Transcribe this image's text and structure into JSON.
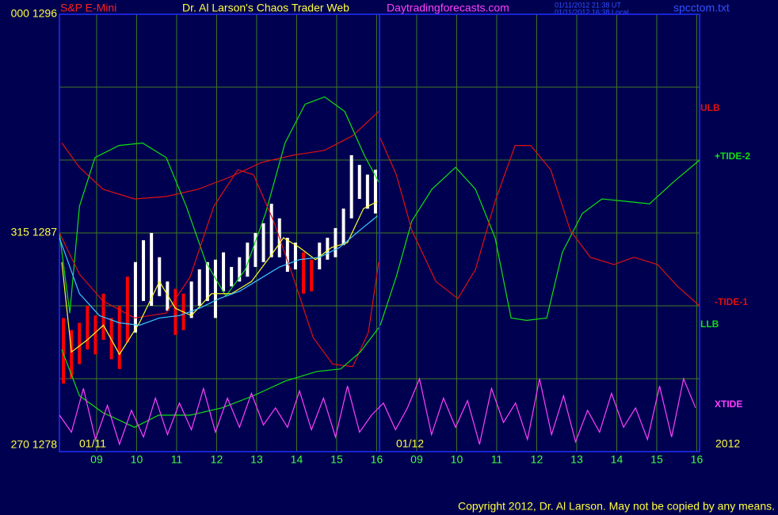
{
  "header": {
    "symbol": "S&P E-Mini",
    "title": "Dr. Al Larson's Chaos Trader Web",
    "site": "Daytradingforecasts.com",
    "time_ut": "01/11/2012 21:38 UT",
    "time_local": "01/11/2012 16:38 Local",
    "file": "spcctom.txt"
  },
  "footer": "Copyright 2012, Dr. Al Larson. May not be copied by any means.",
  "chart_data": {
    "type": "line",
    "xlim": [
      0,
      16
    ],
    "ylim": [
      1278,
      1296
    ],
    "xticks": [
      {
        "value": 0.93,
        "label": "09"
      },
      {
        "value": 1.93,
        "label": "10"
      },
      {
        "value": 2.93,
        "label": "11"
      },
      {
        "value": 3.93,
        "label": "12"
      },
      {
        "value": 4.93,
        "label": "13"
      },
      {
        "value": 5.93,
        "label": "14"
      },
      {
        "value": 6.93,
        "label": "15"
      },
      {
        "value": 7.93,
        "label": "16"
      },
      {
        "value": 8.93,
        "label": "09"
      },
      {
        "value": 9.93,
        "label": "10"
      },
      {
        "value": 10.93,
        "label": "11"
      },
      {
        "value": 11.93,
        "label": "12"
      },
      {
        "value": 12.93,
        "label": "13"
      },
      {
        "value": 13.93,
        "label": "14"
      },
      {
        "value": 14.93,
        "label": "15"
      },
      {
        "value": 15.93,
        "label": "16"
      }
    ],
    "yticks": [
      {
        "value": 1296,
        "label": "000 1296"
      },
      {
        "value": 1287,
        "label": "315 1287"
      },
      {
        "value": 1278,
        "label": "270 1278"
      }
    ],
    "ygrid": [
      1281,
      1284,
      1290,
      1293
    ],
    "day_break": 8,
    "date_labels": [
      "01/11",
      "01/12",
      "2012"
    ],
    "grid_color": "#3f7a22",
    "bars": {
      "x": [
        0.1,
        0.3,
        0.5,
        0.7,
        0.9,
        1.1,
        1.3,
        1.5,
        1.7,
        1.9,
        2.1,
        2.3,
        2.5,
        2.7,
        2.9,
        3.1,
        3.3,
        3.5,
        3.7,
        3.9,
        4.1,
        4.3,
        4.5,
        4.7,
        4.9,
        5.1,
        5.3,
        5.5,
        5.7,
        5.9,
        6.1,
        6.3,
        6.5,
        6.7,
        6.9,
        7.1,
        7.3,
        7.5,
        7.7,
        7.9
      ],
      "high": [
        1283.5,
        1283.0,
        1283.3,
        1284.0,
        1283.6,
        1284.5,
        1283.5,
        1284.0,
        1285.2,
        1285.8,
        1286.7,
        1287.0,
        1286.0,
        1285.0,
        1284.7,
        1284.5,
        1285.0,
        1285.5,
        1285.8,
        1285.9,
        1286.2,
        1285.6,
        1286.0,
        1286.6,
        1287.0,
        1287.4,
        1288.2,
        1287.6,
        1286.8,
        1286.6,
        1286.2,
        1285.9,
        1286.6,
        1286.8,
        1287.2,
        1288.0,
        1290.2,
        1289.8,
        1289.4,
        1289.6
      ],
      "low": [
        1280.8,
        1281.0,
        1281.6,
        1282.2,
        1282.0,
        1282.6,
        1281.8,
        1281.4,
        1282.5,
        1282.9,
        1284.2,
        1284.0,
        1284.4,
        1283.8,
        1282.8,
        1283.0,
        1283.5,
        1284.0,
        1284.2,
        1283.5,
        1284.6,
        1284.8,
        1285.0,
        1285.2,
        1285.6,
        1285.8,
        1286.0,
        1286.0,
        1285.4,
        1285.5,
        1284.5,
        1284.6,
        1285.5,
        1285.9,
        1286.0,
        1286.5,
        1287.6,
        1288.4,
        1288.0,
        1287.8
      ],
      "colors": [
        "#ff0000",
        "#ff0000",
        "#ff0000",
        "#ff0000",
        "#ff0000",
        "#ff0000",
        "#ff0000",
        "#ff0000",
        "#ff0000",
        "#ffffff",
        "#ffffff",
        "#ffffff",
        "#ffffff",
        "#ffffff",
        "#ff0000",
        "#ff0000",
        "#ffffff",
        "#ffffff",
        "#ffffff",
        "#ffffff",
        "#ffffff",
        "#ffffff",
        "#ffffff",
        "#ffffff",
        "#ffffff",
        "#ffffff",
        "#ffffff",
        "#ffffff",
        "#ffffff",
        "#ffffff",
        "#ff0000",
        "#ff0000",
        "#ffffff",
        "#ffffff",
        "#ffffff",
        "#ffffff",
        "#ffffff",
        "#ffffff",
        "#ffffff",
        "#ffffff"
      ]
    },
    "series": [
      {
        "name": "ULB",
        "color": "#e01010",
        "x": [
          0.06,
          0.5,
          1.09,
          1.88,
          2.67,
          3.47,
          4.26,
          5.05,
          5.84,
          6.63,
          7.33,
          7.98
        ],
        "values": [
          1290.7,
          1289.7,
          1288.8,
          1288.4,
          1288.5,
          1288.8,
          1289.3,
          1289.9,
          1290.2,
          1290.4,
          1291.0,
          1292.0
        ]
      },
      {
        "name": "+TIDE-2",
        "color": "#10e010",
        "x": [
          0,
          0.26,
          0.5,
          0.89,
          1.49,
          2.08,
          2.67,
          3.17,
          3.66,
          4.16,
          4.65,
          5.15,
          5.64,
          6.14,
          6.63,
          7.13,
          7.62,
          7.98,
          null,
          8.02,
          8.42,
          8.81,
          9.31,
          9.9,
          10.4,
          10.89,
          11.29,
          11.68,
          12.18,
          12.57,
          13.07,
          13.56,
          14.16,
          14.75,
          15.35,
          16.0
        ],
        "values": [
          1287.0,
          1283.7,
          1288.1,
          1290.1,
          1290.6,
          1290.7,
          1290.1,
          1288.1,
          1285.8,
          1284.4,
          1285.5,
          1287.8,
          1290.7,
          1292.3,
          1292.6,
          1292.0,
          1290.2,
          1289.1,
          null,
          1283.2,
          1285.2,
          1287.5,
          1288.8,
          1289.7,
          1288.8,
          1286.8,
          1283.5,
          1283.4,
          1283.5,
          1286.2,
          1287.8,
          1288.4,
          1288.3,
          1288.2,
          1289.1,
          1290.0
        ]
      },
      {
        "name": "-TIDE-1",
        "color": "#e01010",
        "x": [
          0,
          0.5,
          1.09,
          1.88,
          2.67,
          3.27,
          3.86,
          4.46,
          4.85,
          5.35,
          5.84,
          6.34,
          6.83,
          7.33,
          7.72,
          7.98,
          null,
          8.02,
          8.42,
          8.81,
          9.41,
          9.96,
          10.4,
          10.89,
          11.39,
          11.78,
          12.28,
          12.77,
          13.27,
          13.86,
          14.36,
          14.95,
          15.45,
          16.0
        ],
        "values": [
          1287.0,
          1285.3,
          1284.2,
          1283.5,
          1283.7,
          1285.2,
          1288.1,
          1289.6,
          1289.4,
          1287.5,
          1285.2,
          1282.7,
          1281.6,
          1281.5,
          1282.9,
          1285.8,
          null,
          1290.9,
          1289.4,
          1287.1,
          1285.0,
          1284.3,
          1285.5,
          1288.3,
          1290.6,
          1290.6,
          1289.6,
          1287.1,
          1286.0,
          1285.7,
          1286.0,
          1285.7,
          1284.8,
          1284.0
        ]
      },
      {
        "name": "LLB",
        "color": "#10e010",
        "x": [
          0.06,
          0.5,
          1.09,
          1.88,
          2.48,
          3.27,
          4.06,
          4.85,
          5.64,
          6.44,
          7.03,
          7.52,
          7.98
        ],
        "values": [
          1282.2,
          1280.3,
          1279.6,
          1279.0,
          1279.5,
          1279.5,
          1279.8,
          1280.3,
          1280.9,
          1281.3,
          1281.4,
          1282.1,
          1283.1
        ]
      },
      {
        "name": "XTIDE",
        "color": "#ff40ff",
        "x": [
          0,
          0.3,
          0.6,
          0.9,
          1.2,
          1.5,
          1.8,
          2.1,
          2.4,
          2.7,
          3.0,
          3.3,
          3.6,
          3.9,
          4.2,
          4.5,
          4.8,
          5.1,
          5.4,
          5.7,
          6.0,
          6.3,
          6.6,
          6.9,
          7.2,
          7.5,
          7.8,
          8.1,
          8.4,
          8.7,
          9.0,
          9.3,
          9.6,
          9.9,
          10.2,
          10.5,
          10.8,
          11.1,
          11.4,
          11.7,
          12.0,
          12.3,
          12.6,
          12.9,
          13.2,
          13.5,
          13.8,
          14.1,
          14.4,
          14.7,
          15.0,
          15.3,
          15.6,
          15.9
        ],
        "values": [
          1279.5,
          1278.8,
          1280.6,
          1278.5,
          1279.9,
          1278.3,
          1279.7,
          1278.6,
          1280.2,
          1278.7,
          1280.0,
          1278.9,
          1280.6,
          1278.8,
          1280.2,
          1279.0,
          1280.4,
          1279.1,
          1279.8,
          1279.0,
          1280.5,
          1278.9,
          1280.2,
          1278.6,
          1280.7,
          1278.8,
          1279.5,
          1280.0,
          1278.9,
          1279.8,
          1281.0,
          1278.7,
          1280.2,
          1279.0,
          1280.1,
          1278.3,
          1280.6,
          1279.2,
          1280.0,
          1278.5,
          1281.0,
          1278.7,
          1280.3,
          1278.4,
          1279.7,
          1278.8,
          1280.4,
          1279.0,
          1279.8,
          1278.5,
          1280.7,
          1278.6,
          1281.0,
          1279.8
        ]
      },
      {
        "color": "#ffff20",
        "x": [
          0.06,
          0.3,
          0.7,
          1.1,
          1.5,
          2.0,
          2.5,
          2.9,
          3.3,
          3.8,
          4.3,
          4.8,
          5.3,
          5.6,
          6.0,
          6.4,
          6.8,
          7.2,
          7.6,
          7.95
        ],
        "values": [
          1285.8,
          1282.1,
          1282.6,
          1283.2,
          1282.0,
          1283.3,
          1285.0,
          1283.9,
          1283.6,
          1284.5,
          1284.5,
          1285.0,
          1286.1,
          1286.8,
          1286.4,
          1285.9,
          1286.4,
          1286.6,
          1288.0,
          1288.3
        ]
      },
      {
        "color": "#40c8ff",
        "x": [
          0,
          0.5,
          1.0,
          1.5,
          2.0,
          2.5,
          3.0,
          3.5,
          4.0,
          4.5,
          5.0,
          5.5,
          6.0,
          6.5,
          7.0,
          7.5,
          7.95
        ],
        "values": [
          1286.8,
          1284.5,
          1283.6,
          1283.3,
          1283.2,
          1283.5,
          1283.6,
          1283.9,
          1284.3,
          1284.6,
          1285.1,
          1285.6,
          1285.9,
          1286.0,
          1286.4,
          1287.1,
          1287.7
        ]
      }
    ]
  }
}
